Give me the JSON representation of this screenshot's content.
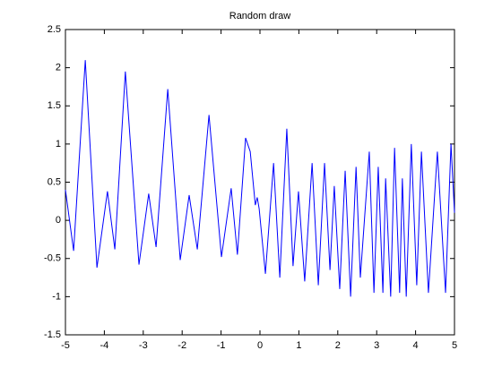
{
  "chart_data": {
    "type": "line",
    "title": "Random draw",
    "x": [
      -5,
      -4.79,
      -4.49,
      -4.19,
      -3.92,
      -3.73,
      -3.46,
      -3.11,
      -2.86,
      -2.67,
      -2.37,
      -2.05,
      -1.82,
      -1.61,
      -1.31,
      -0.99,
      -0.74,
      -0.58,
      -0.37,
      -0.25,
      -0.12,
      -0.07,
      -0.02,
      0.14,
      0.35,
      0.51,
      0.69,
      0.85,
      0.99,
      1.15,
      1.34,
      1.5,
      1.66,
      1.8,
      1.91,
      2.05,
      2.19,
      2.33,
      2.47,
      2.58,
      2.81,
      2.93,
      3.04,
      3.16,
      3.23,
      3.36,
      3.46,
      3.59,
      3.66,
      3.76,
      3.89,
      4.03,
      4.15,
      4.33,
      4.56,
      4.77,
      4.91,
      5
    ],
    "series": [
      {
        "name": "Random draw",
        "color": "#0000ff",
        "values": [
          0.4,
          -0.4,
          2.1,
          -0.62,
          0.38,
          -0.38,
          1.95,
          -0.58,
          0.35,
          -0.35,
          1.72,
          -0.52,
          0.33,
          -0.38,
          1.38,
          -0.48,
          0.42,
          -0.45,
          1.08,
          0.9,
          0.2,
          0.3,
          0.15,
          -0.7,
          0.75,
          -0.75,
          1.2,
          -0.6,
          0.38,
          -0.8,
          0.75,
          -0.85,
          0.75,
          -0.65,
          0.45,
          -0.9,
          0.65,
          -1.0,
          0.7,
          -0.75,
          0.9,
          -0.95,
          0.7,
          -0.95,
          0.55,
          -1.0,
          0.95,
          -0.95,
          0.55,
          -1.0,
          1.0,
          -0.85,
          0.9,
          -0.95,
          0.9,
          -0.95,
          1.0,
          0.1
        ]
      }
    ],
    "xlim": [
      -5,
      5
    ],
    "xticks": [
      -5,
      -4,
      -3,
      -2,
      -1,
      0,
      1,
      2,
      3,
      4,
      5
    ],
    "ylim": [
      -1.5,
      2.5
    ],
    "yticks": [
      -1.5,
      -1,
      -0.5,
      0,
      0.5,
      1,
      1.5,
      2,
      2.5
    ]
  }
}
